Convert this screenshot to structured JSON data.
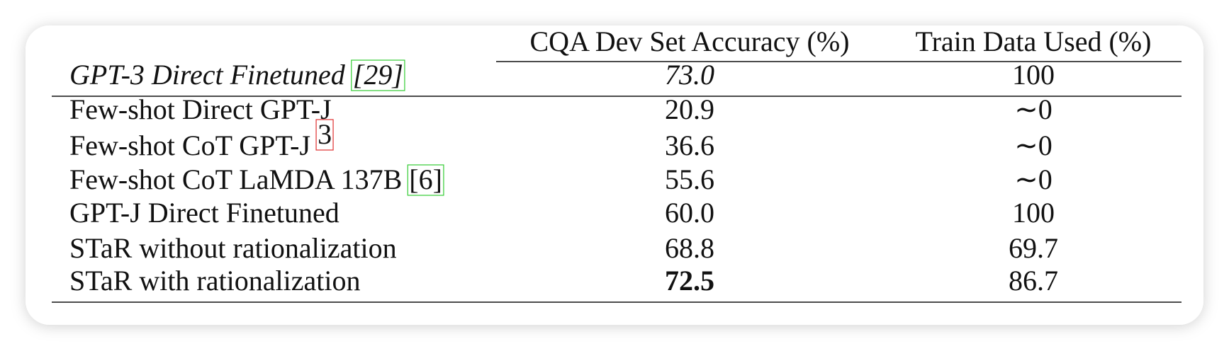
{
  "table": {
    "headers": [
      "CQA Dev Set Accuracy (%)",
      "Train Data Used (%)"
    ],
    "rows": [
      {
        "label": "GPT-3 Direct Finetuned",
        "cite": "[29]",
        "accuracy": "73.0",
        "train": "100"
      },
      {
        "label": "Few-shot Direct GPT-J",
        "accuracy": "20.9",
        "train": "∼0"
      },
      {
        "label": "Few-shot CoT GPT-J",
        "cite": "3",
        "accuracy": "36.6",
        "train": "∼0"
      },
      {
        "label": "Few-shot CoT LaMDA 137B",
        "cite": "[6]",
        "accuracy": "55.6",
        "train": "∼0"
      },
      {
        "label": "GPT-J Direct Finetuned",
        "accuracy": "60.0",
        "train": "100"
      },
      {
        "label": "STaR without rationalization",
        "accuracy": "68.8",
        "train": "69.7"
      },
      {
        "label": "STaR with rationalization",
        "accuracy": "72.5",
        "train": "86.7"
      }
    ]
  }
}
